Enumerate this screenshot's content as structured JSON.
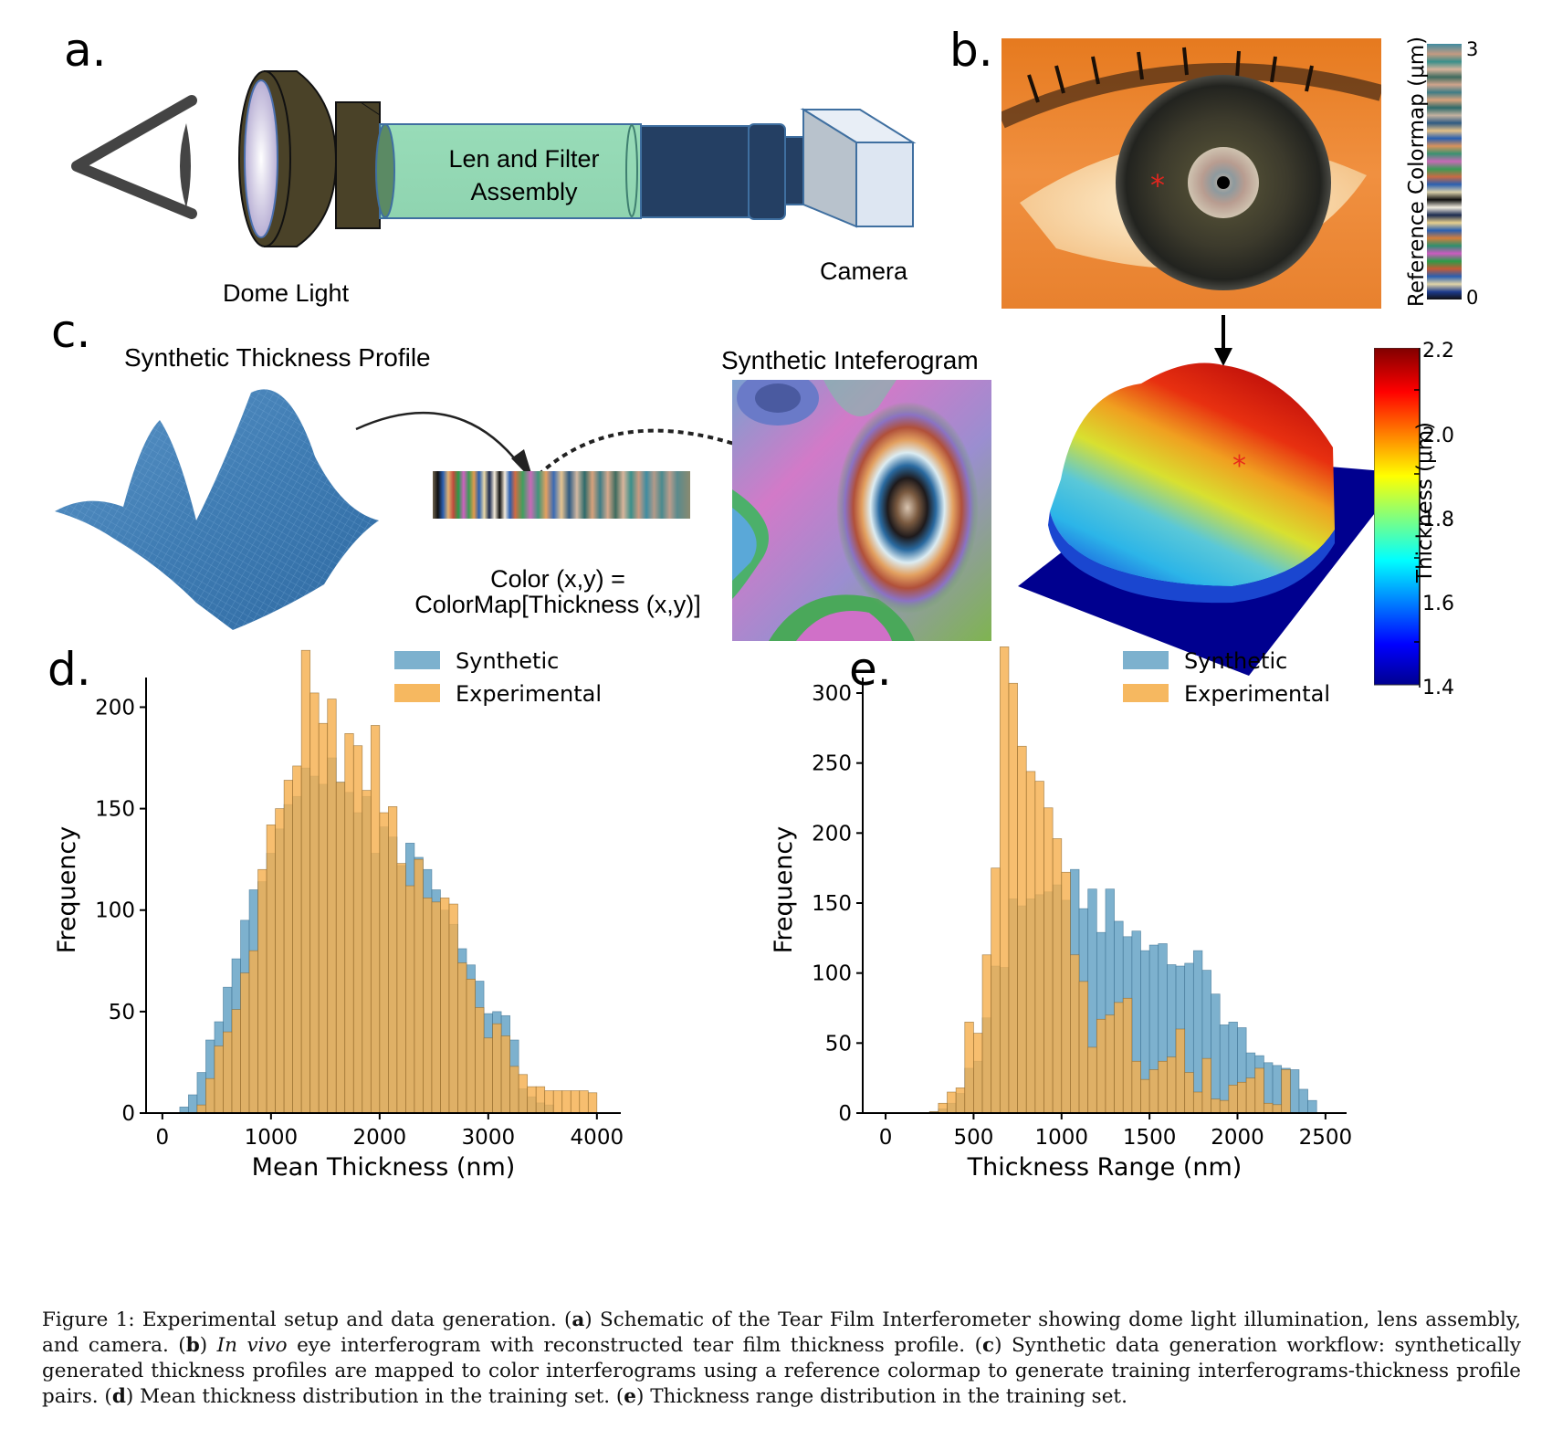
{
  "panels": {
    "a": {
      "label": "a.",
      "components": {
        "lens_filter": [
          "Len and Filter",
          "Assembly"
        ],
        "dome_light": "Dome Light",
        "camera": "Camera"
      },
      "colors": {
        "dome": "#4a4228",
        "lens_tube": "#98dcb8",
        "camera_tube": "#243f63",
        "camera_body": "#dde6f2",
        "eye": "#444444"
      }
    },
    "b": {
      "label": "b.",
      "colorbar": {
        "title": "Reference Colormap (μm)",
        "max_label": "3",
        "min_label": "0"
      },
      "marker": "*"
    },
    "c": {
      "label": "c.",
      "profile_title": "Synthetic Thickness Profile",
      "interferogram_title": "Synthetic Inteferogram",
      "formula": [
        "Color (x,y) =",
        "ColorMap[Thickness (x,y)]"
      ],
      "marker": "*",
      "colorbar": {
        "title": "Thickness (μm)",
        "ticks": [
          "2.2",
          "2.0",
          "1.8",
          "1.6",
          "1.4"
        ]
      }
    },
    "d": {
      "label": "d."
    },
    "e": {
      "label": "e."
    }
  },
  "chart_data": [
    {
      "type": "bar",
      "subtype": "overlapping-histogram",
      "panel": "d",
      "title": "",
      "xlabel": "Mean Thickness (nm)",
      "ylabel": "Frequency",
      "xlim": [
        -150,
        4220
      ],
      "ylim": [
        0,
        238
      ],
      "xticks": [
        0,
        1000,
        2000,
        3000,
        4000
      ],
      "yticks": [
        0,
        50,
        100,
        150,
        200
      ],
      "bin_start": 160,
      "bin_width": 80,
      "legend": {
        "position": "top-right",
        "entries": [
          "Synthetic",
          "Experimental"
        ]
      },
      "grid": false,
      "series": [
        {
          "name": "Synthetic",
          "color": "#6fa8c9",
          "values": [
            3,
            9,
            20,
            36,
            45,
            62,
            76,
            95,
            110,
            114,
            128,
            140,
            152,
            156,
            170,
            166,
            162,
            175,
            163,
            158,
            148,
            156,
            128,
            141,
            136,
            122,
            133,
            126,
            120,
            110,
            100,
            93,
            81,
            73,
            65,
            49,
            50,
            48,
            36,
            12,
            8,
            5,
            4,
            0,
            0,
            0,
            0,
            0
          ]
        },
        {
          "name": "Experimental",
          "color": "#f5b04f",
          "values": [
            0,
            0,
            4,
            17,
            33,
            40,
            51,
            69,
            80,
            120,
            142,
            150,
            164,
            171,
            228,
            207,
            192,
            204,
            163,
            187,
            181,
            159,
            191,
            148,
            151,
            123,
            112,
            125,
            106,
            104,
            106,
            103,
            74,
            66,
            52,
            37,
            44,
            38,
            23,
            19,
            13,
            13,
            11,
            11,
            11,
            11,
            11,
            10
          ]
        }
      ]
    },
    {
      "type": "bar",
      "subtype": "overlapping-histogram",
      "panel": "e",
      "title": "",
      "xlabel": "Thickness Range (nm)",
      "ylabel": "Frequency",
      "xlim": [
        -130,
        2620
      ],
      "ylim": [
        0,
        345
      ],
      "xticks": [
        0,
        500,
        1000,
        1500,
        2000,
        2500
      ],
      "yticks": [
        0,
        50,
        100,
        150,
        200,
        250,
        300
      ],
      "bin_start": 250,
      "bin_width": 50,
      "legend": {
        "position": "top-right",
        "entries": [
          "Synthetic",
          "Experimental"
        ]
      },
      "grid": false,
      "series": [
        {
          "name": "Synthetic",
          "color": "#6fa8c9",
          "values": [
            1,
            3,
            7,
            14,
            32,
            37,
            68,
            105,
            104,
            153,
            148,
            153,
            156,
            158,
            163,
            152,
            174,
            146,
            160,
            129,
            160,
            137,
            126,
            130,
            116,
            120,
            121,
            106,
            105,
            107,
            116,
            102,
            85,
            63,
            65,
            61,
            43,
            41,
            36,
            34,
            32,
            31,
            17,
            9
          ]
        },
        {
          "name": "Experimental",
          "color": "#f5b04f",
          "values": [
            1,
            7,
            15,
            18,
            65,
            57,
            113,
            175,
            333,
            307,
            262,
            244,
            237,
            218,
            196,
            172,
            113,
            94,
            47,
            67,
            70,
            79,
            82,
            37,
            24,
            31,
            37,
            40,
            60,
            29,
            15,
            39,
            10,
            9,
            20,
            22,
            25,
            32,
            7,
            6,
            31,
            0,
            0,
            0
          ]
        }
      ]
    }
  ],
  "caption": {
    "prefix": "Figure 1: Experimental setup and data generation. (",
    "a_key": "a",
    "a_text": ") Schematic of the Tear Film Interferometer showing dome light illumination, lens assembly, and camera. (",
    "b_key": "b",
    "b_mid": ") ",
    "b_italic": "In vivo",
    "b_text": " eye interferogram with reconstructed tear film thickness profile. (",
    "c_key": "c",
    "c_text": ") Synthetic data generation workflow: synthetically generated thickness profiles are mapped to color interferograms using a reference colormap to generate training interferograms-thickness profile pairs. (",
    "d_key": "d",
    "d_text": ") Mean thickness distribution in the training set. (",
    "e_key": "e",
    "e_text": ") Thickness range distribution in the training set."
  }
}
